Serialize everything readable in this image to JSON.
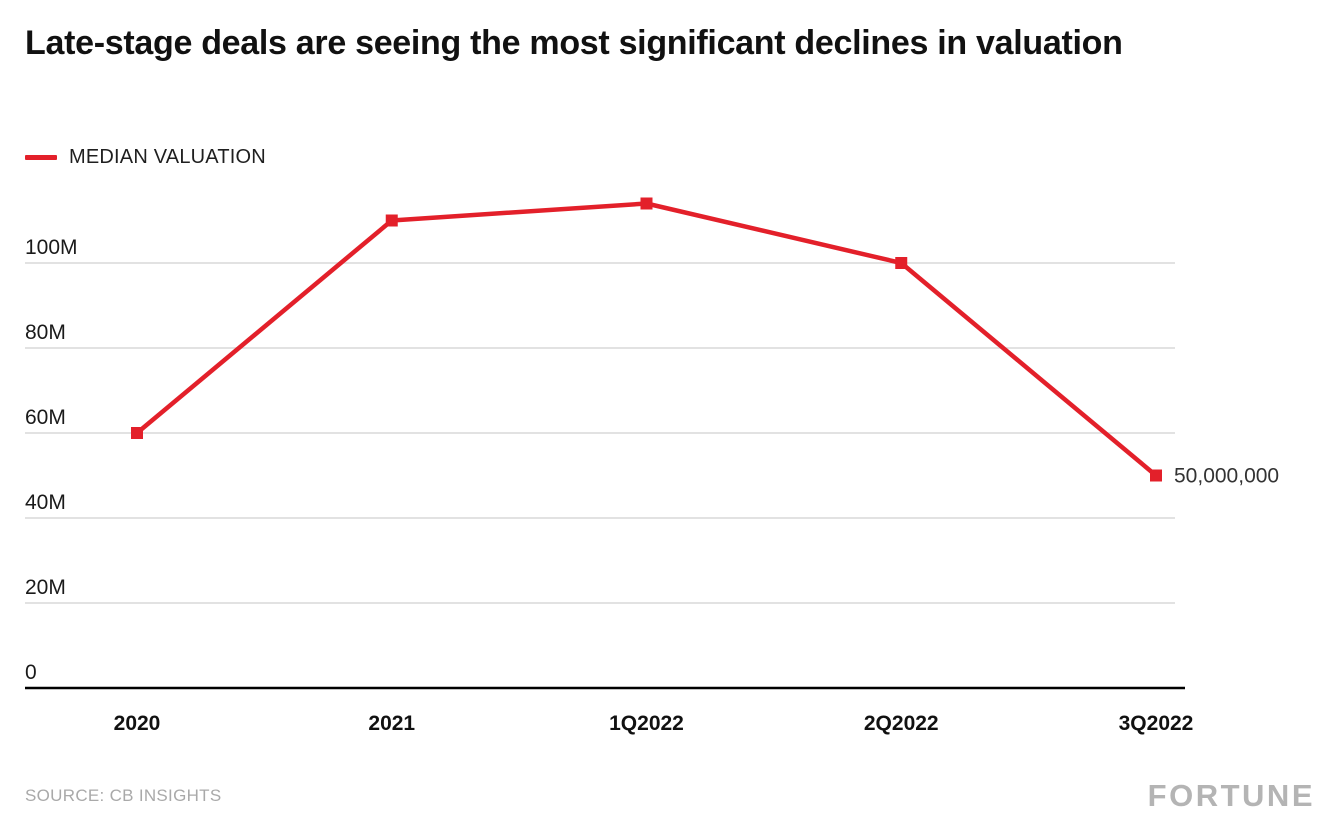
{
  "title": "Late-stage deals are seeing the most significant declines in valuation",
  "legend": {
    "label": "MEDIAN VALUATION",
    "color": "#e3202a"
  },
  "source": "SOURCE: CB INSIGHTS",
  "brand": "FORTUNE",
  "chart_data": {
    "type": "line",
    "title": "Late-stage deals are seeing the most significant declines in valuation",
    "categories": [
      "2020",
      "2021",
      "1Q2022",
      "2Q2022",
      "3Q2022"
    ],
    "series": [
      {
        "name": "MEDIAN VALUATION",
        "color": "#e3202a",
        "values": [
          60000000,
          110000000,
          114000000,
          100000000,
          50000000
        ]
      }
    ],
    "ytick_values": [
      0,
      20000000,
      40000000,
      60000000,
      80000000,
      100000000
    ],
    "ytick_labels": [
      "0",
      "20M",
      "40M",
      "60M",
      "80M",
      "100M"
    ],
    "ylim": [
      0,
      124000000
    ],
    "grid": "horizontal",
    "legend_position": "top-left",
    "last_point_label": "50,000,000",
    "marker": "square",
    "colors": {
      "gridline": "#d9d9d9",
      "axis": "#000000",
      "tick_text": "#1a1a1a",
      "end_label_text": "#333333"
    }
  }
}
